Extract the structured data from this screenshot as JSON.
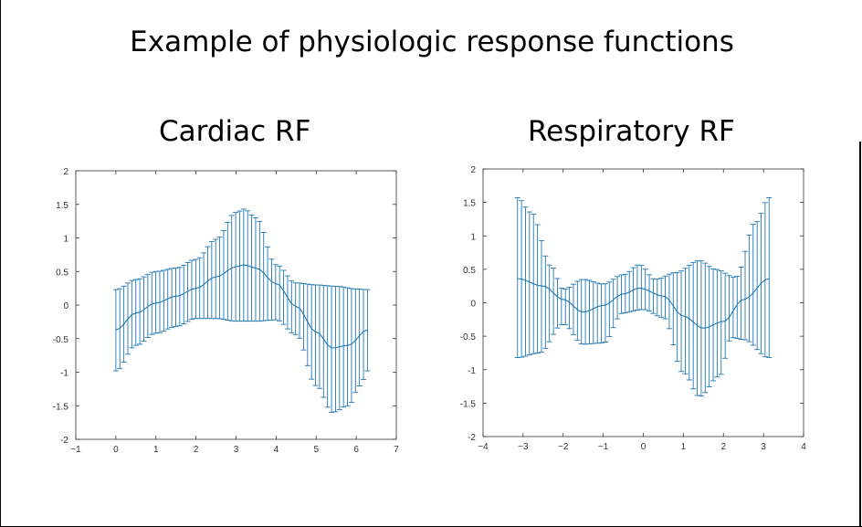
{
  "slide": {
    "title": "Example of physiologic response functions"
  },
  "colors": {
    "series": "#1f77b4",
    "axis": "#333333"
  },
  "chart_data": [
    {
      "type": "line",
      "title": "Cardiac RF",
      "error_bars": true,
      "xlim": [
        -1,
        7
      ],
      "ylim": [
        -2,
        2
      ],
      "xticks": [
        -1,
        0,
        1,
        2,
        3,
        4,
        5,
        6,
        7
      ],
      "xtick_labels": [
        "−1",
        "0",
        "1",
        "2",
        "3",
        "4",
        "5",
        "6",
        "7"
      ],
      "yticks": [
        2,
        1.5,
        1,
        0.5,
        0,
        -0.5,
        -1,
        -1.5,
        -2
      ],
      "ytick_labels": [
        "2",
        "1.5",
        "1",
        "0.5",
        "0",
        "-0.5",
        "-1",
        "-1.5",
        "-2"
      ],
      "x_range": [
        0,
        6.28
      ],
      "points": 64,
      "mean_knots": [
        [
          0,
          -0.37
        ],
        [
          0.5,
          -0.12
        ],
        [
          1.0,
          0.03
        ],
        [
          1.5,
          0.13
        ],
        [
          2.0,
          0.25
        ],
        [
          2.5,
          0.42
        ],
        [
          3.0,
          0.57
        ],
        [
          3.2,
          0.6
        ],
        [
          3.5,
          0.55
        ],
        [
          4.0,
          0.32
        ],
        [
          4.5,
          -0.02
        ],
        [
          5.0,
          -0.4
        ],
        [
          5.4,
          -0.64
        ],
        [
          5.8,
          -0.6
        ],
        [
          6.28,
          -0.37
        ]
      ],
      "upper_knots": [
        [
          0,
          0.23
        ],
        [
          0.5,
          0.38
        ],
        [
          1.0,
          0.5
        ],
        [
          1.5,
          0.55
        ],
        [
          2.0,
          0.68
        ],
        [
          2.5,
          0.98
        ],
        [
          3.0,
          1.38
        ],
        [
          3.2,
          1.43
        ],
        [
          3.5,
          1.3
        ],
        [
          4.0,
          0.6
        ],
        [
          4.5,
          0.33
        ],
        [
          5.0,
          0.3
        ],
        [
          5.5,
          0.28
        ],
        [
          6.0,
          0.24
        ],
        [
          6.28,
          0.23
        ]
      ],
      "lower_knots": [
        [
          0,
          -0.98
        ],
        [
          0.5,
          -0.6
        ],
        [
          1.0,
          -0.42
        ],
        [
          1.5,
          -0.32
        ],
        [
          2.0,
          -0.2
        ],
        [
          2.5,
          -0.2
        ],
        [
          3.0,
          -0.24
        ],
        [
          3.5,
          -0.24
        ],
        [
          4.0,
          -0.22
        ],
        [
          4.5,
          -0.44
        ],
        [
          5.0,
          -1.2
        ],
        [
          5.4,
          -1.6
        ],
        [
          5.8,
          -1.5
        ],
        [
          6.1,
          -1.2
        ],
        [
          6.28,
          -0.98
        ]
      ]
    },
    {
      "type": "line",
      "title": "Respiratory RF",
      "error_bars": true,
      "xlim": [
        -4,
        4
      ],
      "ylim": [
        -2,
        2
      ],
      "xticks": [
        -4,
        -3,
        -2,
        -1,
        0,
        1,
        2,
        3,
        4
      ],
      "xtick_labels": [
        "−4",
        "−3",
        "−2",
        "−1",
        "0",
        "1",
        "2",
        "3",
        "4"
      ],
      "yticks": [
        2,
        1.5,
        1,
        0.5,
        0,
        -0.5,
        -1,
        -1.5,
        -2
      ],
      "ytick_labels": [
        "2",
        "1.5",
        "1",
        "0.5",
        "0",
        "-0.5",
        "-1",
        "-1.5",
        "-2"
      ],
      "x_range": [
        -3.14,
        3.14
      ],
      "points": 64,
      "mean_knots": [
        [
          -3.14,
          0.36
        ],
        [
          -2.5,
          0.25
        ],
        [
          -2.0,
          0.05
        ],
        [
          -1.5,
          -0.14
        ],
        [
          -1.0,
          -0.04
        ],
        [
          -0.5,
          0.13
        ],
        [
          -0.1,
          0.22
        ],
        [
          0.5,
          0.1
        ],
        [
          1.0,
          -0.2
        ],
        [
          1.5,
          -0.38
        ],
        [
          2.0,
          -0.28
        ],
        [
          2.5,
          0.05
        ],
        [
          3.14,
          0.36
        ]
      ],
      "upper_knots": [
        [
          -3.14,
          1.57
        ],
        [
          -2.8,
          1.35
        ],
        [
          -2.3,
          0.55
        ],
        [
          -2.0,
          0.2
        ],
        [
          -1.5,
          0.35
        ],
        [
          -1.0,
          0.28
        ],
        [
          -0.5,
          0.42
        ],
        [
          -0.1,
          0.57
        ],
        [
          0.3,
          0.35
        ],
        [
          0.8,
          0.45
        ],
        [
          1.4,
          0.63
        ],
        [
          1.8,
          0.5
        ],
        [
          2.3,
          0.38
        ],
        [
          2.8,
          1.2
        ],
        [
          3.14,
          1.57
        ]
      ],
      "lower_knots": [
        [
          -3.14,
          -0.82
        ],
        [
          -2.6,
          -0.75
        ],
        [
          -2.0,
          -0.32
        ],
        [
          -1.5,
          -0.62
        ],
        [
          -1.0,
          -0.6
        ],
        [
          -0.5,
          -0.15
        ],
        [
          0.0,
          -0.1
        ],
        [
          0.5,
          -0.22
        ],
        [
          1.0,
          -1.05
        ],
        [
          1.4,
          -1.4
        ],
        [
          1.9,
          -1.1
        ],
        [
          2.2,
          -0.52
        ],
        [
          2.5,
          -0.55
        ],
        [
          3.14,
          -0.82
        ]
      ]
    }
  ]
}
